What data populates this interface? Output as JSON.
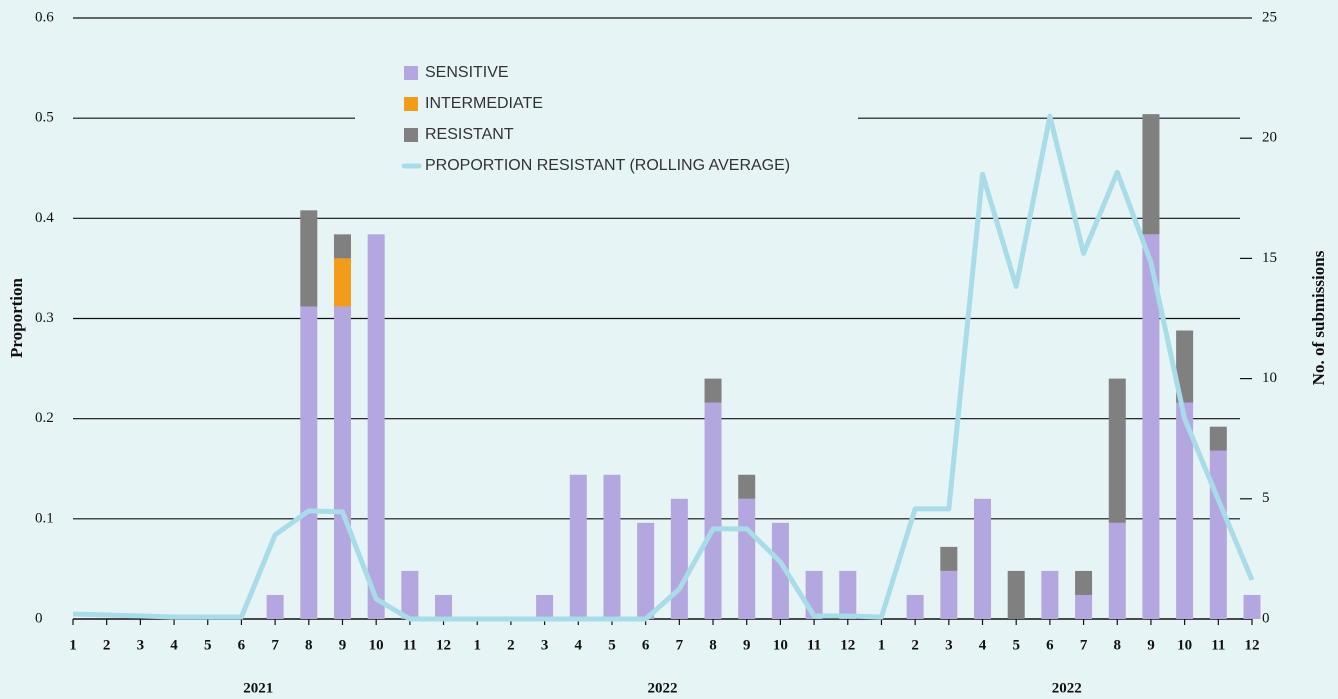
{
  "chart_data": {
    "type": "bar",
    "categories": [
      "1",
      "2",
      "3",
      "4",
      "5",
      "6",
      "7",
      "8",
      "9",
      "10",
      "11",
      "12",
      "1",
      "2",
      "3",
      "4",
      "5",
      "6",
      "7",
      "8",
      "9",
      "10",
      "11",
      "12",
      "1",
      "2",
      "3",
      "4",
      "5",
      "6",
      "7",
      "8",
      "9",
      "10",
      "11",
      "12"
    ],
    "group_labels": [
      "2021",
      "2022",
      "2022"
    ],
    "y_label": "Proportion",
    "y2_label": "No. of submissions",
    "ylim": [
      0,
      0.6
    ],
    "yticks": [
      0,
      0.1,
      0.2,
      0.3,
      0.4,
      0.5,
      0.6
    ],
    "y2lim": [
      0,
      25
    ],
    "y2ticks": [
      0,
      5,
      10,
      15,
      20,
      25
    ],
    "grid": true,
    "stacked": true,
    "series": [
      {
        "name": "SENSITIVE",
        "color": "#b4a6de",
        "axis": "y2",
        "values": [
          0,
          0,
          0,
          0,
          0,
          0,
          1,
          13,
          13,
          16,
          2,
          1,
          0,
          0,
          1,
          6,
          6,
          4,
          5,
          9,
          5,
          4,
          2,
          2,
          0,
          1,
          2,
          5,
          0,
          2,
          1,
          4,
          16,
          9,
          7,
          1
        ]
      },
      {
        "name": "INTERMEDIATE",
        "color": "#f39c1a",
        "axis": "y2",
        "values": [
          0,
          0,
          0,
          0,
          0,
          0,
          0,
          0,
          2,
          0,
          0,
          0,
          0,
          0,
          0,
          0,
          0,
          0,
          0,
          0,
          0,
          0,
          0,
          0,
          0,
          0,
          0,
          0,
          0,
          0,
          0,
          0,
          0,
          0,
          0,
          0
        ]
      },
      {
        "name": "RESISTANT",
        "color": "#808080",
        "axis": "y2",
        "values": [
          0,
          0,
          0,
          0,
          0,
          0,
          0,
          4,
          1,
          0,
          0,
          0,
          0,
          0,
          0,
          0,
          0,
          0,
          0,
          1,
          1,
          0,
          0,
          0,
          0,
          0,
          1,
          0,
          2,
          0,
          1,
          6,
          5,
          3,
          1,
          0
        ]
      },
      {
        "name": "PROPORTION RESISTANT (ROLLING AVERAGE)",
        "color": "#a8dce8",
        "type": "line",
        "axis": "y",
        "values": [
          0.005,
          0.004,
          0.003,
          0.002,
          0.002,
          0.002,
          0.084,
          0.108,
          0.107,
          0.02,
          0,
          0,
          0,
          0,
          0,
          0,
          0,
          0,
          0.03,
          0.09,
          0.09,
          0.057,
          0.003,
          0.003,
          0.002,
          0.11,
          0.11,
          0.444,
          0.332,
          0.502,
          0.365,
          0.446,
          0.356,
          0.2,
          0.119,
          0.039
        ]
      }
    ]
  }
}
